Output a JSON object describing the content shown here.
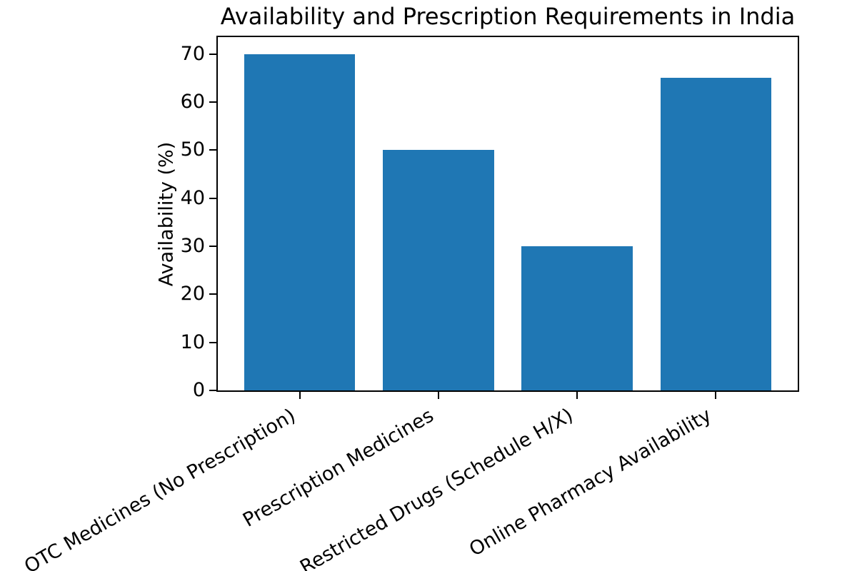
{
  "chart_data": {
    "type": "bar",
    "title": "Availability and Prescription Requirements in India",
    "xlabel": "",
    "ylabel": "Availability (%)",
    "categories": [
      "OTC Medicines (No Prescription)",
      "Prescription Medicines",
      "Restricted Drugs (Schedule H/X)",
      "Online Pharmacy Availability"
    ],
    "values": [
      70,
      50,
      30,
      65
    ],
    "yticks": [
      0,
      10,
      20,
      30,
      40,
      50,
      60,
      70
    ],
    "ylim": [
      0,
      73.5
    ],
    "bar_color": "#1f77b4",
    "text_color": "#000000",
    "spine_color": "#000000",
    "background_color": "#ffffff",
    "bar_width_fraction": 0.8,
    "xtick_rotation_deg": 30,
    "grid": false,
    "legend_position": "none"
  }
}
